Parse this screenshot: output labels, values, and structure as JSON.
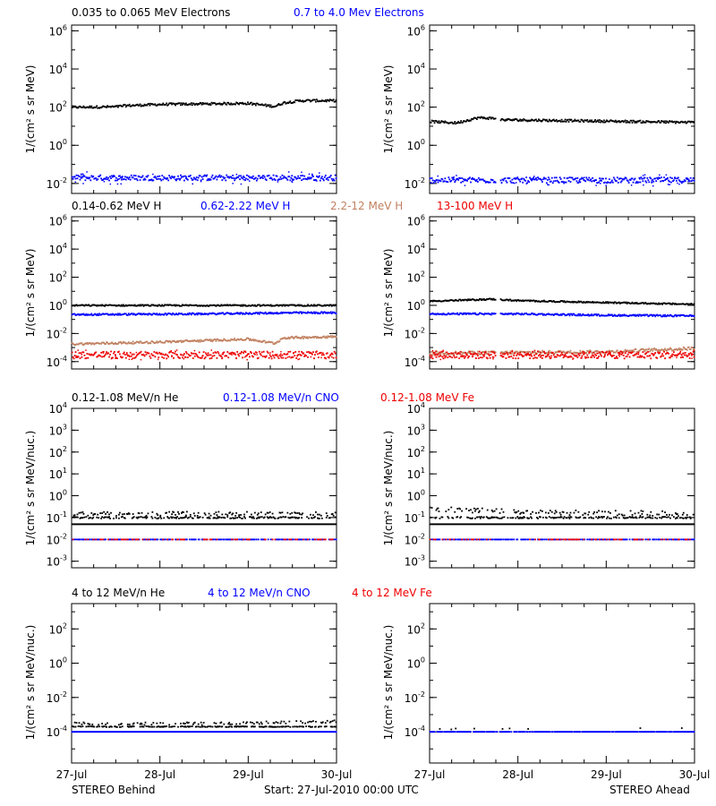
{
  "colors": {
    "black": "#000000",
    "blue": "#0000ff",
    "tan": "#c08060",
    "red": "#ee0000"
  },
  "footer": {
    "left": "STEREO Behind",
    "center": "Start: 27-Jul-2010 00:00 UTC",
    "right": "STEREO Ahead"
  },
  "x_tick_labels": [
    "27-Jul",
    "28-Jul",
    "29-Jul",
    "30-Jul"
  ],
  "rows": [
    {
      "legend": [
        {
          "text": "0.035 to 0.065 MeV Electrons",
          "color": "#000000"
        },
        {
          "text": "0.7 to 4.0 Mev Electrons",
          "color": "#0000ff"
        }
      ],
      "ylabel_left": "1/(cm² s sr MeV)",
      "ylabel_right": "1/(cm² s sr MeV)"
    },
    {
      "legend": [
        {
          "text": "0.14-0.62 MeV H",
          "color": "#000000"
        },
        {
          "text": "0.62-2.22 MeV H",
          "color": "#0000ff"
        },
        {
          "text": "2.2-12 MeV H",
          "color": "#c08060"
        },
        {
          "text": "13-100 MeV H",
          "color": "#ee0000"
        }
      ],
      "ylabel_left": "1/(cm² s sr MeV)",
      "ylabel_right": "1/(cm² s sr MeV)"
    },
    {
      "legend": [
        {
          "text": "0.12-1.08 MeV/n He",
          "color": "#000000"
        },
        {
          "text": "0.12-1.08 MeV/n CNO",
          "color": "#0000ff"
        },
        {
          "text": "0.12-1.08 MeV Fe",
          "color": "#ee0000"
        }
      ],
      "ylabel_left": "1/(cm² s sr MeV/nuc.)",
      "ylabel_right": "1/(cm² s sr MeV/nuc.)"
    },
    {
      "legend": [
        {
          "text": "4 to 12 MeV/n He",
          "color": "#000000"
        },
        {
          "text": "4 to 12 MeV/n CNO",
          "color": "#0000ff"
        },
        {
          "text": "4 to 12 MeV Fe",
          "color": "#ee0000"
        }
      ],
      "ylabel_left": "1/(cm² s sr MeV/nuc.)",
      "ylabel_right": "1/(cm² s sr MeV/nuc.)"
    }
  ],
  "chart_data": [
    {
      "type": "scatter",
      "panel": "row1-left",
      "yscale": "log",
      "xlim": [
        0,
        3
      ],
      "ylim": [
        0.003,
        2000000
      ],
      "yticks": [
        {
          "v": 0.01,
          "label": "10^-2"
        },
        {
          "v": 1,
          "label": "10^0"
        },
        {
          "v": 100,
          "label": "10^2"
        },
        {
          "v": 10000,
          "label": "10^4"
        },
        {
          "v": 1000000,
          "label": "10^6"
        }
      ],
      "series": [
        {
          "color": "#000000",
          "x": [
            0,
            0.5,
            0.6,
            1.0,
            1.5,
            2.0,
            2.3,
            2.4,
            2.6,
            3.0
          ],
          "y": [
            100,
            105,
            120,
            140,
            150,
            160,
            110,
            170,
            220,
            220
          ],
          "scatter": 1.15,
          "outliers": 0
        },
        {
          "color": "#0000ff",
          "x": [
            0,
            3
          ],
          "y": [
            0.02,
            0.02
          ],
          "scatter": 1.4,
          "outliers": 40
        }
      ]
    },
    {
      "type": "scatter",
      "panel": "row1-right",
      "yscale": "log",
      "xlim": [
        0,
        3
      ],
      "ylim": [
        0.003,
        2000000
      ],
      "yticks": [
        {
          "v": 0.01,
          "label": "10^-2"
        },
        {
          "v": 1,
          "label": "10^0"
        },
        {
          "v": 100,
          "label": "10^2"
        },
        {
          "v": 10000,
          "label": "10^4"
        },
        {
          "v": 1000000,
          "label": "10^6"
        }
      ],
      "gaps": [
        [
          0.75,
          0.8
        ]
      ],
      "series": [
        {
          "color": "#000000",
          "x": [
            0,
            0.3,
            0.55,
            0.75,
            0.8,
            1.5,
            2.2,
            3.0
          ],
          "y": [
            18,
            15,
            28,
            26,
            22,
            20,
            18,
            16
          ],
          "scatter": 1.15,
          "outliers": 0
        },
        {
          "color": "#0000ff",
          "x": [
            0,
            3
          ],
          "y": [
            0.015,
            0.015
          ],
          "scatter": 1.4,
          "outliers": 40
        }
      ]
    },
    {
      "type": "scatter",
      "panel": "row2-left",
      "yscale": "log",
      "xlim": [
        0,
        3
      ],
      "ylim": [
        3e-05,
        2000000
      ],
      "yticks": [
        {
          "v": 0.0001,
          "label": "10^-4"
        },
        {
          "v": 0.01,
          "label": "10^-2"
        },
        {
          "v": 1,
          "label": "10^0"
        },
        {
          "v": 100,
          "label": "10^2"
        },
        {
          "v": 10000,
          "label": "10^4"
        },
        {
          "v": 1000000,
          "label": "10^6"
        }
      ],
      "series": [
        {
          "color": "#000000",
          "x": [
            0,
            3
          ],
          "y": [
            1.0,
            1.0
          ],
          "scatter": 1.12,
          "outliers": 0
        },
        {
          "color": "#0000ff",
          "x": [
            0,
            1.5,
            2.5,
            3.0
          ],
          "y": [
            0.22,
            0.25,
            0.3,
            0.3
          ],
          "scatter": 1.15,
          "outliers": 0
        },
        {
          "color": "#c08060",
          "x": [
            0,
            1.0,
            2.0,
            2.3,
            2.4,
            3.0
          ],
          "y": [
            0.0018,
            0.0025,
            0.004,
            0.002,
            0.005,
            0.006
          ],
          "scatter": 1.2,
          "outliers": 0
        },
        {
          "color": "#ee0000",
          "x": [
            0,
            3
          ],
          "y": [
            0.0003,
            0.0003
          ],
          "scatter": 1.8,
          "outliers": 60
        }
      ]
    },
    {
      "type": "scatter",
      "panel": "row2-right",
      "yscale": "log",
      "xlim": [
        0,
        3
      ],
      "ylim": [
        3e-05,
        2000000
      ],
      "yticks": [
        {
          "v": 0.0001,
          "label": "10^-4"
        },
        {
          "v": 0.01,
          "label": "10^-2"
        },
        {
          "v": 1,
          "label": "10^0"
        },
        {
          "v": 100,
          "label": "10^2"
        },
        {
          "v": 10000,
          "label": "10^4"
        },
        {
          "v": 1000000,
          "label": "10^6"
        }
      ],
      "gaps": [
        [
          0.75,
          0.8
        ]
      ],
      "series": [
        {
          "color": "#000000",
          "x": [
            0,
            0.5,
            0.7,
            1.0,
            2.0,
            3.0
          ],
          "y": [
            2.0,
            2.5,
            2.8,
            2.2,
            1.6,
            1.2
          ],
          "scatter": 1.12,
          "outliers": 0
        },
        {
          "color": "#0000ff",
          "x": [
            0,
            1.0,
            2.0,
            3.0
          ],
          "y": [
            0.25,
            0.25,
            0.2,
            0.18
          ],
          "scatter": 1.15,
          "outliers": 0
        },
        {
          "color": "#c08060",
          "x": [
            0,
            2.0,
            3.0
          ],
          "y": [
            0.0004,
            0.0005,
            0.0009
          ],
          "scatter": 1.3,
          "outliers": 0
        },
        {
          "color": "#ee0000",
          "x": [
            0,
            3
          ],
          "y": [
            0.0003,
            0.0003
          ],
          "scatter": 1.8,
          "outliers": 60
        }
      ]
    },
    {
      "type": "scatter",
      "panel": "row3-left",
      "yscale": "log",
      "xlim": [
        0,
        3
      ],
      "ylim": [
        0.0005,
        10000
      ],
      "yticks": [
        {
          "v": 0.001,
          "label": "10^-3"
        },
        {
          "v": 0.01,
          "label": "10^-2"
        },
        {
          "v": 0.1,
          "label": "10^-1"
        },
        {
          "v": 1,
          "label": "10^0"
        },
        {
          "v": 10,
          "label": "10^1"
        },
        {
          "v": 100,
          "label": "10^2"
        },
        {
          "v": 1000,
          "label": "10^3"
        },
        {
          "v": 10000,
          "label": "10^4"
        }
      ],
      "series": [
        {
          "color": "#000000",
          "x": [
            0,
            3
          ],
          "y": [
            0.05,
            0.05
          ],
          "scatter": 1.0,
          "outliers": 0
        },
        {
          "color": "#000000",
          "x": [
            0,
            3
          ],
          "y": [
            0.1,
            0.1
          ],
          "scatter": 1.1,
          "outliers": 0,
          "sparse": 0.55
        },
        {
          "color": "#000000",
          "x": [
            0,
            3
          ],
          "y": [
            0.15,
            0.15
          ],
          "scatter": 1.25,
          "outliers": 0,
          "sparse": 0.35
        },
        {
          "color": "#0000ff",
          "x": [
            0,
            3
          ],
          "y": [
            0.01,
            0.01
          ],
          "scatter": 1.0,
          "outliers": 0,
          "sparse": 0.7
        },
        {
          "color": "#ee0000",
          "x": [
            0,
            3
          ],
          "y": [
            0.01,
            0.01
          ],
          "scatter": 1.0,
          "outliers": 0,
          "sparse": 0.25
        }
      ]
    },
    {
      "type": "scatter",
      "panel": "row3-right",
      "yscale": "log",
      "xlim": [
        0,
        3
      ],
      "ylim": [
        0.0005,
        10000
      ],
      "yticks": [
        {
          "v": 0.001,
          "label": "10^-3"
        },
        {
          "v": 0.01,
          "label": "10^-2"
        },
        {
          "v": 0.1,
          "label": "10^-1"
        },
        {
          "v": 1,
          "label": "10^0"
        },
        {
          "v": 10,
          "label": "10^1"
        },
        {
          "v": 100,
          "label": "10^2"
        },
        {
          "v": 1000,
          "label": "10^3"
        },
        {
          "v": 10000,
          "label": "10^4"
        }
      ],
      "series": [
        {
          "color": "#000000",
          "x": [
            0,
            3
          ],
          "y": [
            0.05,
            0.05
          ],
          "scatter": 1.0,
          "outliers": 0
        },
        {
          "color": "#000000",
          "x": [
            0,
            3
          ],
          "y": [
            0.1,
            0.1
          ],
          "scatter": 1.1,
          "outliers": 0,
          "sparse": 0.55
        },
        {
          "color": "#000000",
          "x": [
            0,
            1.0,
            3.0
          ],
          "y": [
            0.25,
            0.18,
            0.15
          ],
          "scatter": 1.3,
          "outliers": 0,
          "sparse": 0.35
        },
        {
          "color": "#0000ff",
          "x": [
            0,
            3
          ],
          "y": [
            0.01,
            0.01
          ],
          "scatter": 1.0,
          "outliers": 0,
          "sparse": 0.7
        },
        {
          "color": "#ee0000",
          "x": [
            0,
            3
          ],
          "y": [
            0.01,
            0.01
          ],
          "scatter": 1.0,
          "outliers": 0,
          "sparse": 0.25
        }
      ]
    },
    {
      "type": "scatter",
      "panel": "row4-left",
      "yscale": "log",
      "xlim": [
        0,
        3
      ],
      "ylim": [
        1.5e-06,
        3000
      ],
      "yticks": [
        {
          "v": 0.0001,
          "label": "10^-4"
        },
        {
          "v": 0.01,
          "label": "10^-2"
        },
        {
          "v": 1,
          "label": "10^0"
        },
        {
          "v": 100,
          "label": "10^2"
        }
      ],
      "series": [
        {
          "color": "#0000ff",
          "x": [
            0,
            3
          ],
          "y": [
            0.0001,
            0.0001
          ],
          "scatter": 1.0,
          "outliers": 0
        },
        {
          "color": "#000000",
          "x": [
            0,
            3
          ],
          "y": [
            0.0002,
            0.0002
          ],
          "scatter": 1.05,
          "outliers": 0,
          "sparse": 0.6
        },
        {
          "color": "#000000",
          "x": [
            0,
            1.5,
            3.0
          ],
          "y": [
            0.0003,
            0.0003,
            0.0004
          ],
          "scatter": 1.2,
          "outliers": 0,
          "sparse": 0.3
        }
      ]
    },
    {
      "type": "scatter",
      "panel": "row4-right",
      "yscale": "log",
      "xlim": [
        0,
        3
      ],
      "ylim": [
        1.5e-06,
        3000
      ],
      "yticks": [
        {
          "v": 0.0001,
          "label": "10^-4"
        },
        {
          "v": 0.01,
          "label": "10^-2"
        },
        {
          "v": 1,
          "label": "10^0"
        },
        {
          "v": 100,
          "label": "10^2"
        }
      ],
      "series": [
        {
          "color": "#0000ff",
          "x": [
            0,
            3
          ],
          "y": [
            0.0001,
            0.0001
          ],
          "scatter": 1.0,
          "outliers": 0,
          "sparse": 0.9
        },
        {
          "color": "#000000",
          "x": [
            0,
            3
          ],
          "y": [
            0.00015,
            0.00015
          ],
          "scatter": 1.1,
          "outliers": 0,
          "sparse": 0.05
        }
      ]
    }
  ]
}
